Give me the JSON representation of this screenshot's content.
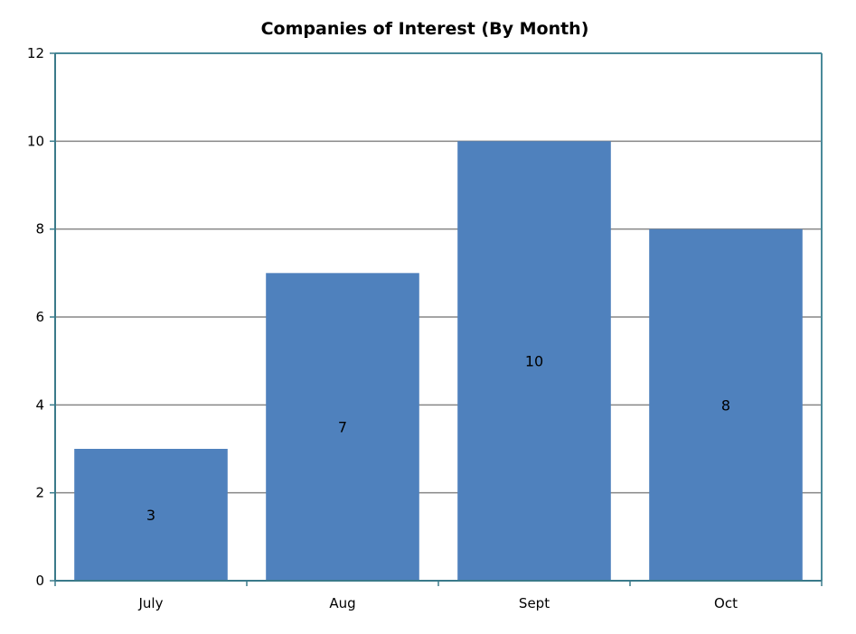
{
  "chart_data": {
    "type": "bar",
    "title": "Companies of Interest (By Month)",
    "categories": [
      "July",
      "Aug",
      "Sept",
      "Oct"
    ],
    "values": [
      3,
      7,
      10,
      8
    ],
    "data_labels": [
      "3",
      "7",
      "10",
      "8"
    ],
    "ylim": [
      0,
      12
    ],
    "y_ticks": [
      0,
      2,
      4,
      6,
      8,
      10,
      12
    ],
    "y_tick_labels": [
      "0",
      "2",
      "4",
      "6",
      "8",
      "10",
      "12"
    ],
    "xlabel": "",
    "ylabel": "",
    "grid": true,
    "legend": "none",
    "colors": {
      "bar": "#4f81bd",
      "gridline": "#868686",
      "axis": "#3a7a8a",
      "border": "#4a8a9a"
    }
  }
}
